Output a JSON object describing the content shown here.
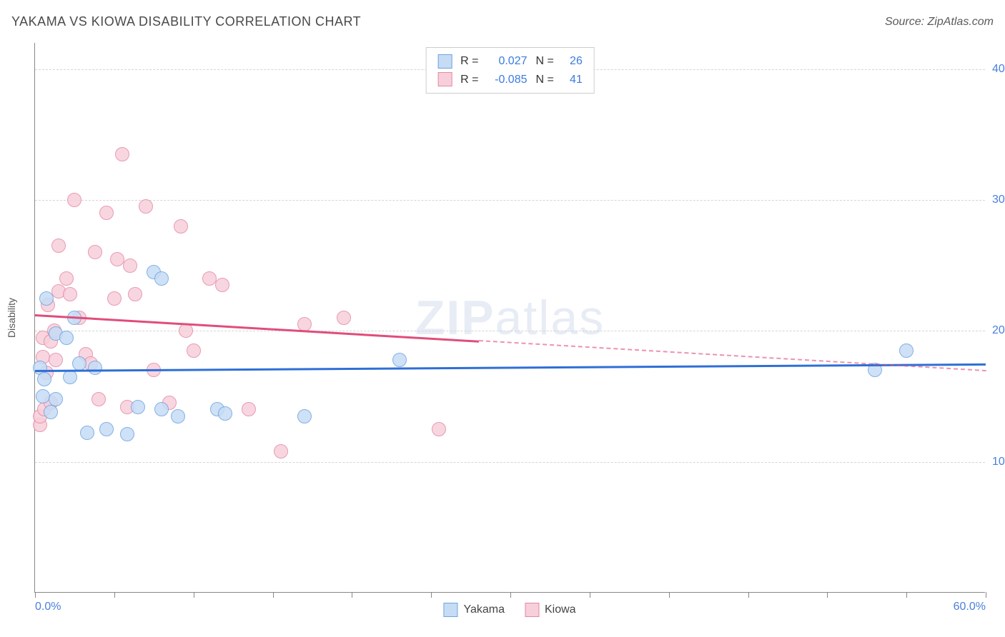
{
  "header": {
    "title": "YAKAMA VS KIOWA DISABILITY CORRELATION CHART",
    "source": "Source: ZipAtlas.com"
  },
  "watermark": {
    "bold": "ZIP",
    "light": "atlas"
  },
  "chart": {
    "type": "scatter",
    "y_axis_title": "Disability",
    "background_color": "#ffffff",
    "grid_color": "#d5d5d5",
    "axis_color": "#888888",
    "tick_label_color": "#4a7fdc",
    "xlim": [
      0,
      60
    ],
    "ylim": [
      0,
      42
    ],
    "xticks_major": [
      0,
      10,
      20,
      30,
      40,
      50,
      60
    ],
    "xticks_minor": [
      5,
      15,
      25,
      35,
      45,
      55
    ],
    "xtick_labels": {
      "0": "0.0%",
      "60": "60.0%"
    },
    "yticks": [
      10,
      20,
      30,
      40
    ],
    "ytick_labels": {
      "10": "10.0%",
      "20": "20.0%",
      "30": "30.0%",
      "40": "40.0%"
    },
    "series": [
      {
        "name": "Yakama",
        "marker_fill": "#c6dcf5",
        "marker_stroke": "#6fa3e0",
        "marker_radius": 10,
        "points": [
          [
            0.3,
            17.2
          ],
          [
            0.5,
            15.0
          ],
          [
            0.6,
            16.3
          ],
          [
            0.7,
            22.5
          ],
          [
            1.0,
            13.8
          ],
          [
            1.3,
            19.8
          ],
          [
            1.3,
            14.8
          ],
          [
            2.0,
            19.5
          ],
          [
            2.2,
            16.5
          ],
          [
            2.5,
            21.0
          ],
          [
            2.8,
            17.5
          ],
          [
            3.3,
            12.2
          ],
          [
            3.8,
            17.2
          ],
          [
            4.5,
            12.5
          ],
          [
            5.8,
            12.1
          ],
          [
            7.5,
            24.5
          ],
          [
            8.0,
            24.0
          ],
          [
            8.0,
            14.0
          ],
          [
            9.0,
            13.5
          ],
          [
            11.5,
            14.0
          ],
          [
            12.0,
            13.7
          ],
          [
            17.0,
            13.5
          ],
          [
            23.0,
            17.8
          ],
          [
            53.0,
            17.0
          ],
          [
            55.0,
            18.5
          ],
          [
            6.5,
            14.2
          ]
        ],
        "trend": {
          "x0": 0,
          "y0": 17.0,
          "x1": 60,
          "y1": 17.5,
          "color": "#2e6fd6",
          "solid_until_x": 60
        }
      },
      {
        "name": "Kiowa",
        "marker_fill": "#f7cfda",
        "marker_stroke": "#e589a5",
        "marker_radius": 10,
        "points": [
          [
            0.3,
            12.8
          ],
          [
            0.3,
            13.5
          ],
          [
            0.5,
            19.5
          ],
          [
            0.5,
            18.0
          ],
          [
            0.6,
            14.0
          ],
          [
            0.7,
            16.8
          ],
          [
            0.8,
            22.0
          ],
          [
            1.0,
            14.5
          ],
          [
            1.0,
            19.2
          ],
          [
            1.2,
            20.0
          ],
          [
            1.3,
            17.8
          ],
          [
            1.5,
            23.0
          ],
          [
            1.5,
            26.5
          ],
          [
            2.0,
            24.0
          ],
          [
            2.2,
            22.8
          ],
          [
            2.5,
            30.0
          ],
          [
            2.8,
            21.0
          ],
          [
            3.2,
            18.2
          ],
          [
            3.5,
            17.5
          ],
          [
            3.8,
            26.0
          ],
          [
            4.5,
            29.0
          ],
          [
            5.0,
            22.5
          ],
          [
            5.2,
            25.5
          ],
          [
            5.5,
            33.5
          ],
          [
            6.0,
            25.0
          ],
          [
            6.3,
            22.8
          ],
          [
            7.0,
            29.5
          ],
          [
            7.5,
            17.0
          ],
          [
            8.5,
            14.5
          ],
          [
            9.2,
            28.0
          ],
          [
            9.5,
            20.0
          ],
          [
            10.0,
            18.5
          ],
          [
            11.0,
            24.0
          ],
          [
            11.8,
            23.5
          ],
          [
            13.5,
            14.0
          ],
          [
            15.5,
            10.8
          ],
          [
            17.0,
            20.5
          ],
          [
            19.5,
            21.0
          ],
          [
            25.5,
            12.5
          ],
          [
            5.8,
            14.2
          ],
          [
            4.0,
            14.8
          ]
        ],
        "trend": {
          "x0": 0,
          "y0": 21.3,
          "x1": 60,
          "y1": 17.0,
          "color": "#e04d7b",
          "solid_until_x": 28
        }
      }
    ],
    "stats_box": {
      "rows": [
        {
          "swatch_fill": "#c6dcf5",
          "swatch_stroke": "#6fa3e0",
          "r_label": "R =",
          "r_val": "0.027",
          "n_label": "N =",
          "n_val": "26"
        },
        {
          "swatch_fill": "#f7cfda",
          "swatch_stroke": "#e589a5",
          "r_label": "R =",
          "r_val": "-0.085",
          "n_label": "N =",
          "n_val": "41"
        }
      ]
    },
    "legend": [
      {
        "label": "Yakama",
        "fill": "#c6dcf5",
        "stroke": "#6fa3e0"
      },
      {
        "label": "Kiowa",
        "fill": "#f7cfda",
        "stroke": "#e589a5"
      }
    ]
  }
}
